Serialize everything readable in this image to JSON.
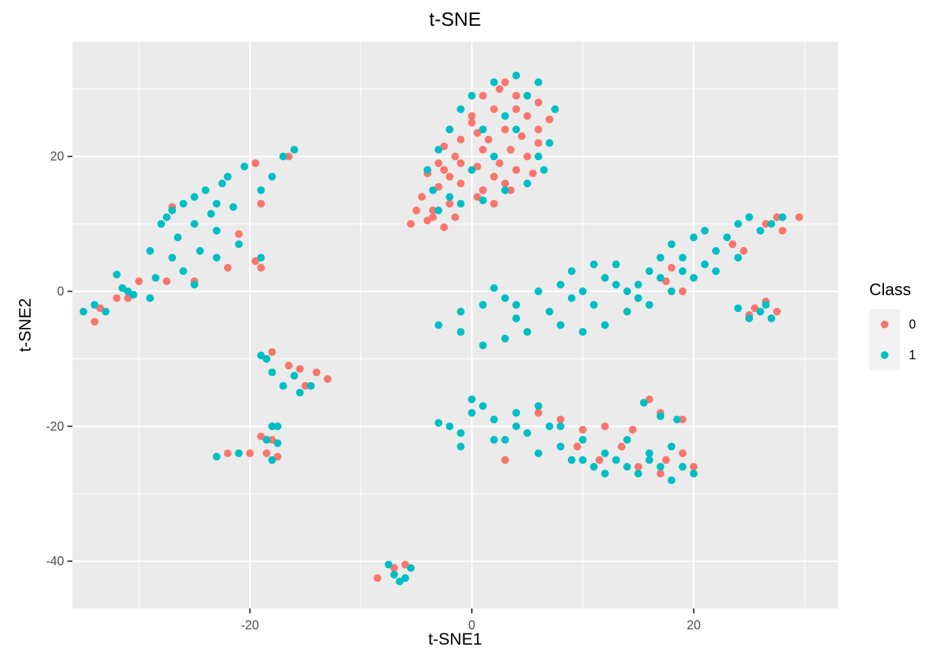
{
  "chart_data": {
    "type": "scatter",
    "title": "t-SNE",
    "xlabel": "t-SNE1",
    "ylabel": "t-SNE2",
    "xlim": [
      -36,
      33
    ],
    "ylim": [
      -47,
      37
    ],
    "x_ticks": [
      -20,
      0,
      20
    ],
    "y_ticks": [
      -40,
      -20,
      0,
      20
    ],
    "x_tick_labels": [
      "-20",
      "0",
      "20"
    ],
    "y_tick_labels": [
      "-40",
      "-20",
      "0",
      "20"
    ],
    "grid": true,
    "legend": {
      "title": "Class",
      "position": "right"
    },
    "background": "#ebebeb",
    "series": [
      {
        "name": "0",
        "color": "#F8766D",
        "points": [
          [
            -3.5,
            12
          ],
          [
            -4,
            10.5
          ],
          [
            -5.5,
            10
          ],
          [
            -2.5,
            9.5
          ],
          [
            -1.5,
            11
          ],
          [
            -4.5,
            14
          ],
          [
            -3,
            15.5
          ],
          [
            -2,
            17
          ],
          [
            -4,
            17.5
          ],
          [
            -3,
            19
          ],
          [
            -1.5,
            20
          ],
          [
            -2.5,
            21.5
          ],
          [
            -1,
            22.5
          ],
          [
            -2,
            24
          ],
          [
            0,
            25
          ],
          [
            1,
            21
          ],
          [
            0.5,
            18.5
          ],
          [
            2,
            17
          ],
          [
            1,
            15
          ],
          [
            3,
            16
          ],
          [
            2.5,
            19
          ],
          [
            4,
            18
          ],
          [
            3.5,
            21
          ],
          [
            5,
            20
          ],
          [
            4.5,
            23
          ],
          [
            6,
            22
          ],
          [
            3,
            24
          ],
          [
            5,
            26
          ],
          [
            2,
            27
          ],
          [
            4,
            29
          ],
          [
            6,
            28
          ],
          [
            3,
            31
          ],
          [
            1,
            29
          ],
          [
            0,
            26
          ],
          [
            -1,
            19
          ],
          [
            2,
            13
          ],
          [
            0.5,
            14
          ],
          [
            -2,
            13
          ],
          [
            3.5,
            15
          ],
          [
            6,
            24
          ],
          [
            -3.5,
            11
          ],
          [
            -5,
            12
          ],
          [
            -1,
            16
          ],
          [
            1.5,
            22.5
          ],
          [
            4,
            27
          ],
          [
            7,
            25.5
          ],
          [
            2.5,
            30
          ],
          [
            -2.5,
            18
          ],
          [
            0.5,
            23.5
          ],
          [
            5.5,
            17.5
          ],
          [
            -19.5,
            19
          ],
          [
            -16.5,
            20
          ],
          [
            -19,
            13
          ],
          [
            -27,
            12.5
          ],
          [
            -21,
            8.5
          ],
          [
            -19.5,
            4.5
          ],
          [
            -19,
            3.5
          ],
          [
            -27.5,
            1.5
          ],
          [
            -25,
            1.5
          ],
          [
            -22,
            3.5
          ],
          [
            -31,
            -1
          ],
          [
            -32,
            -1
          ],
          [
            -33.5,
            -2.5
          ],
          [
            -34,
            -4.5
          ],
          [
            -30,
            1.5
          ],
          [
            -18,
            -9
          ],
          [
            -16.5,
            -11
          ],
          [
            -15.5,
            -11.5
          ],
          [
            -14,
            -12
          ],
          [
            -13,
            -13
          ],
          [
            -15,
            -14
          ],
          [
            -19,
            -21.5
          ],
          [
            -18,
            -22
          ],
          [
            -17.5,
            -24.5
          ],
          [
            -18.5,
            -24
          ],
          [
            -20,
            -24
          ],
          [
            -22,
            -24
          ],
          [
            -8.5,
            -42.5
          ],
          [
            -7,
            -41
          ],
          [
            -6,
            -40.5
          ],
          [
            16,
            -16
          ],
          [
            19,
            -19
          ],
          [
            17,
            -18
          ],
          [
            25.5,
            -2.5
          ],
          [
            26.5,
            -1.5
          ],
          [
            27.5,
            -3
          ],
          [
            25,
            -3.5
          ],
          [
            18,
            3.5
          ],
          [
            17.5,
            1.5
          ],
          [
            19,
            0
          ],
          [
            23.5,
            7
          ],
          [
            24.5,
            6
          ],
          [
            26.5,
            10
          ],
          [
            27.5,
            11
          ],
          [
            29.5,
            11
          ],
          [
            28,
            9
          ],
          [
            19,
            -24
          ],
          [
            20,
            -26
          ],
          [
            17,
            -27
          ],
          [
            15,
            -26
          ],
          [
            13.5,
            -23
          ],
          [
            14.5,
            -20.5
          ],
          [
            12,
            -20
          ],
          [
            10,
            -20.5
          ],
          [
            9.5,
            -23
          ],
          [
            6,
            -18
          ],
          [
            8,
            -19
          ],
          [
            3,
            -25
          ],
          [
            11.5,
            -25
          ],
          [
            17.5,
            -25
          ]
        ]
      },
      {
        "name": "1",
        "color": "#00BFC4",
        "points": [
          [
            -22,
            17
          ],
          [
            -24,
            15
          ],
          [
            -26,
            13
          ],
          [
            -27.5,
            11
          ],
          [
            -25,
            10
          ],
          [
            -23,
            9
          ],
          [
            -21,
            7
          ],
          [
            -19,
            5
          ],
          [
            -20.5,
            18.5
          ],
          [
            -18,
            17
          ],
          [
            -17,
            20
          ],
          [
            -16,
            21
          ],
          [
            -22.5,
            16
          ],
          [
            -25,
            14
          ],
          [
            -27,
            12
          ],
          [
            -28,
            10
          ],
          [
            -26.5,
            8
          ],
          [
            -24.5,
            6
          ],
          [
            -23,
            5
          ],
          [
            -27,
            5
          ],
          [
            -26,
            3
          ],
          [
            -25,
            1
          ],
          [
            -28.5,
            2
          ],
          [
            -29,
            6
          ],
          [
            -23.5,
            11.5
          ],
          [
            -21.5,
            12.5
          ],
          [
            -19,
            15
          ],
          [
            -23,
            13
          ],
          [
            -29,
            -1
          ],
          [
            -31,
            0
          ],
          [
            -33,
            -3
          ],
          [
            -35,
            -3
          ],
          [
            -34,
            -2
          ],
          [
            -30.5,
            -0.5
          ],
          [
            -32,
            2.5
          ],
          [
            -31.5,
            0.5
          ],
          [
            -18.5,
            -10
          ],
          [
            -18,
            -12
          ],
          [
            -17,
            -14
          ],
          [
            -15.5,
            -15
          ],
          [
            -14.5,
            -14
          ],
          [
            -16,
            -12.5
          ],
          [
            -19,
            -9.5
          ],
          [
            -18,
            -20
          ],
          [
            -18.5,
            -22
          ],
          [
            -17.5,
            -22.5
          ],
          [
            -18,
            -25
          ],
          [
            -21,
            -24
          ],
          [
            -23,
            -24.5
          ],
          [
            -17.5,
            -20
          ],
          [
            -7,
            -42
          ],
          [
            -6.5,
            -43
          ],
          [
            -6,
            -42.5
          ],
          [
            -5.5,
            -41
          ],
          [
            -7.5,
            -40.5
          ],
          [
            -3,
            12
          ],
          [
            -1,
            13
          ],
          [
            1,
            13.5
          ],
          [
            3,
            15
          ],
          [
            5,
            16
          ],
          [
            6.5,
            18
          ],
          [
            7,
            22
          ],
          [
            7.5,
            27
          ],
          [
            6,
            31
          ],
          [
            4,
            32
          ],
          [
            2,
            31
          ],
          [
            0,
            29
          ],
          [
            -1,
            27
          ],
          [
            -2,
            24
          ],
          [
            -3,
            21
          ],
          [
            -4,
            18
          ],
          [
            -3.5,
            15
          ],
          [
            -2,
            14
          ],
          [
            4,
            24
          ],
          [
            2,
            20
          ],
          [
            0,
            18
          ],
          [
            3,
            26
          ],
          [
            5,
            29
          ],
          [
            6,
            20
          ],
          [
            1,
            24
          ],
          [
            -3,
            -5
          ],
          [
            -1,
            -3
          ],
          [
            1,
            -2
          ],
          [
            2,
            0.5
          ],
          [
            3,
            -1
          ],
          [
            4,
            -4
          ],
          [
            5,
            -6
          ],
          [
            3,
            -7
          ],
          [
            1,
            -8
          ],
          [
            -1,
            -6
          ],
          [
            4,
            -2
          ],
          [
            6,
            0
          ],
          [
            7,
            -3
          ],
          [
            8,
            1
          ],
          [
            9,
            3
          ],
          [
            10,
            0
          ],
          [
            11,
            -2
          ],
          [
            12,
            2
          ],
          [
            13,
            4
          ],
          [
            14,
            0
          ],
          [
            15,
            1
          ],
          [
            16,
            3
          ],
          [
            17,
            5
          ],
          [
            18,
            7
          ],
          [
            19,
            5
          ],
          [
            20,
            8
          ],
          [
            21,
            9
          ],
          [
            22,
            6
          ],
          [
            23,
            8
          ],
          [
            24,
            10
          ],
          [
            25,
            11
          ],
          [
            26,
            9
          ],
          [
            27,
            10
          ],
          [
            28,
            11
          ],
          [
            24,
            5
          ],
          [
            22,
            3
          ],
          [
            20,
            2
          ],
          [
            18,
            0
          ],
          [
            16,
            -2
          ],
          [
            14,
            -3
          ],
          [
            12,
            -5
          ],
          [
            10,
            -6
          ],
          [
            8,
            -5
          ],
          [
            9,
            -1
          ],
          [
            11,
            4
          ],
          [
            13,
            1
          ],
          [
            15,
            -1
          ],
          [
            17,
            2
          ],
          [
            19,
            3
          ],
          [
            21,
            4
          ],
          [
            -2,
            -20
          ],
          [
            -3,
            -19.5
          ],
          [
            -1,
            -21
          ],
          [
            0,
            -16
          ],
          [
            1,
            -17
          ],
          [
            2,
            -19
          ],
          [
            3,
            -22
          ],
          [
            4,
            -18
          ],
          [
            5,
            -21
          ],
          [
            6,
            -24
          ],
          [
            7,
            -20
          ],
          [
            8,
            -23
          ],
          [
            9,
            -25
          ],
          [
            10,
            -22
          ],
          [
            11,
            -26
          ],
          [
            12,
            -27
          ],
          [
            13,
            -25
          ],
          [
            14,
            -22
          ],
          [
            15,
            -27
          ],
          [
            16,
            -24
          ],
          [
            17,
            -26
          ],
          [
            18,
            -23
          ],
          [
            19,
            -26
          ],
          [
            20,
            -27
          ],
          [
            18,
            -28
          ],
          [
            16,
            -25
          ],
          [
            14,
            -26
          ],
          [
            12,
            -24
          ],
          [
            10,
            -25
          ],
          [
            8,
            -20
          ],
          [
            6,
            -17
          ],
          [
            4,
            -20
          ],
          [
            2,
            -22
          ],
          [
            0,
            -18
          ],
          [
            -1,
            -23
          ],
          [
            15.5,
            -16.5
          ],
          [
            17,
            -18.5
          ],
          [
            18.5,
            -19
          ],
          [
            26,
            -3
          ],
          [
            27,
            -4
          ],
          [
            25,
            -4
          ],
          [
            24,
            -2.5
          ],
          [
            26.5,
            -2
          ]
        ]
      }
    ]
  }
}
